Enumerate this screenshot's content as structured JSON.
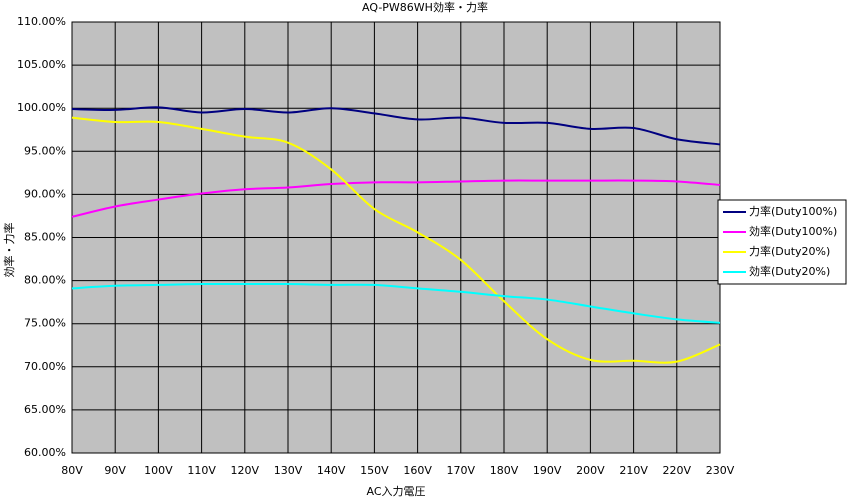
{
  "chart_data": {
    "type": "line",
    "title": "AQ-PW86WH効率・力率",
    "x_label": "AC入力電圧",
    "y_label": "効率・力率",
    "categories": [
      "80V",
      "90V",
      "100V",
      "110V",
      "120V",
      "130V",
      "140V",
      "150V",
      "160V",
      "170V",
      "180V",
      "190V",
      "200V",
      "210V",
      "220V",
      "230V"
    ],
    "series": [
      {
        "name": "力率(Duty100%)",
        "color": "#000080",
        "values": [
          99.9,
          99.8,
          100.1,
          99.5,
          99.9,
          99.5,
          100.0,
          99.4,
          98.7,
          98.9,
          98.3,
          98.3,
          97.6,
          97.7,
          96.4,
          95.8
        ]
      },
      {
        "name": "効率(Duty100%)",
        "color": "#ff00ff",
        "values": [
          87.4,
          88.6,
          89.4,
          90.1,
          90.6,
          90.8,
          91.2,
          91.4,
          91.4,
          91.5,
          91.6,
          91.6,
          91.6,
          91.6,
          91.5,
          91.1
        ]
      },
      {
        "name": "力率(Duty20%)",
        "color": "#ffff00",
        "values": [
          98.9,
          98.4,
          98.4,
          97.6,
          96.7,
          96.0,
          92.9,
          88.3,
          85.6,
          82.4,
          77.6,
          73.2,
          70.8,
          70.7,
          70.6,
          72.6
        ]
      },
      {
        "name": "効率(Duty20%)",
        "color": "#00ffff",
        "values": [
          79.1,
          79.4,
          79.5,
          79.6,
          79.6,
          79.6,
          79.5,
          79.5,
          79.1,
          78.7,
          78.2,
          77.8,
          77.0,
          76.2,
          75.5,
          75.1
        ]
      }
    ],
    "ylim": [
      60,
      110
    ],
    "yticks": [
      {
        "value": 60,
        "label": "60.00%"
      },
      {
        "value": 65,
        "label": "65.00%"
      },
      {
        "value": 70,
        "label": "70.00%"
      },
      {
        "value": 75,
        "label": "75.00%"
      },
      {
        "value": 80,
        "label": "80.00%"
      },
      {
        "value": 85,
        "label": "85.00%"
      },
      {
        "value": 90,
        "label": "90.00%"
      },
      {
        "value": 95,
        "label": "95.00%"
      },
      {
        "value": 100,
        "label": "100.00%"
      },
      {
        "value": 105,
        "label": "105.00%"
      },
      {
        "value": 110,
        "label": "110.00%"
      }
    ],
    "grid": true,
    "plot_color": "#c0c0c0",
    "legend_position": "right"
  }
}
